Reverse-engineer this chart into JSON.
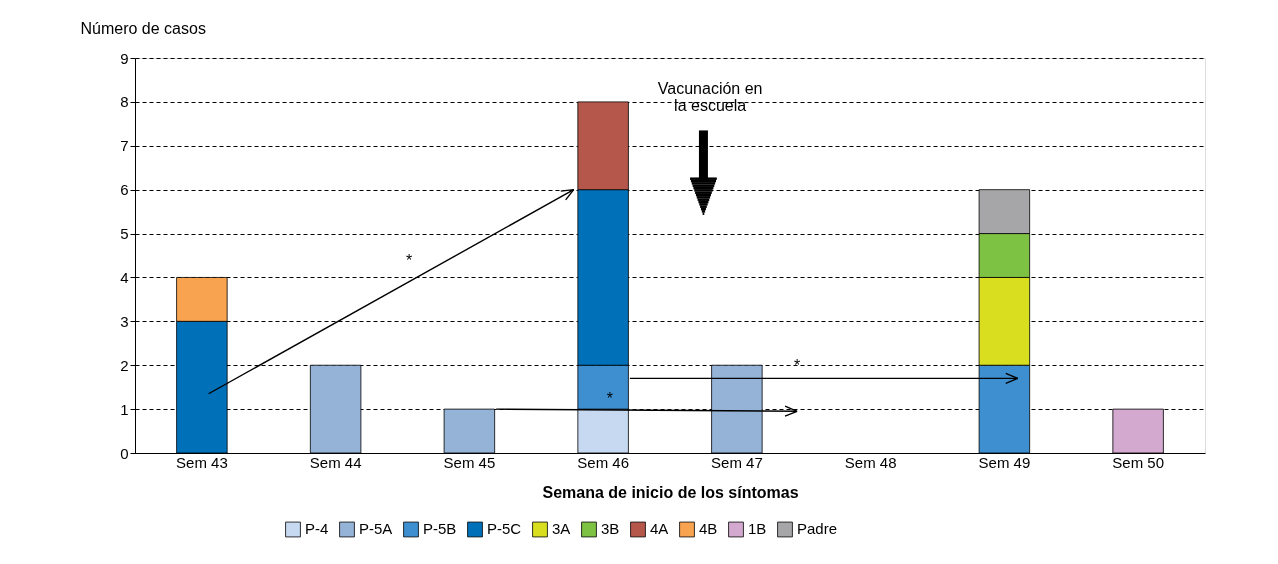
{
  "chart_data": {
    "type": "bar",
    "stacked": true,
    "ylabel": "Número de casos",
    "xlabel": "Semana de inicio de los síntomas",
    "categories": [
      "Sem 43",
      "Sem 44",
      "Sem 45",
      "Sem 46",
      "Sem 47",
      "Sem 48",
      "Sem 49",
      "Sem 50"
    ],
    "series": [
      {
        "name": "P-4",
        "color": "#c6d9f0",
        "values": [
          null,
          null,
          null,
          1,
          null,
          null,
          null,
          null
        ]
      },
      {
        "name": "P-5A",
        "color": "#95b3d7",
        "values": [
          null,
          2,
          1,
          null,
          2,
          null,
          null,
          null
        ]
      },
      {
        "name": "P-5B",
        "color": "#3d8fd0",
        "values": [
          null,
          null,
          null,
          1,
          null,
          null,
          2,
          null
        ]
      },
      {
        "name": "P-5C",
        "color": "#0070b8",
        "values": [
          3,
          null,
          null,
          4,
          null,
          null,
          null,
          null
        ]
      },
      {
        "name": "3A",
        "color": "#d9df1f",
        "values": [
          null,
          null,
          null,
          null,
          null,
          null,
          2,
          null
        ]
      },
      {
        "name": "3B",
        "color": "#7dc242",
        "values": [
          null,
          null,
          null,
          null,
          null,
          null,
          1,
          null
        ]
      },
      {
        "name": "4A",
        "color": "#b5574b",
        "values": [
          null,
          null,
          null,
          2,
          null,
          null,
          null,
          null
        ]
      },
      {
        "name": "4B",
        "color": "#f7a34f",
        "values": [
          1,
          null,
          null,
          null,
          null,
          null,
          null,
          null
        ]
      },
      {
        "name": "1B",
        "color": "#d3a9cf",
        "values": [
          null,
          null,
          null,
          null,
          null,
          null,
          null,
          1
        ]
      },
      {
        "name": "Padre",
        "color": "#a6a6a8",
        "values": [
          null,
          null,
          null,
          null,
          null,
          null,
          1,
          null
        ]
      }
    ],
    "ylim": [
      0,
      9
    ],
    "yticks": [
      0,
      1,
      2,
      3,
      4,
      5,
      6,
      7,
      8,
      9
    ],
    "grid": "y",
    "legend": "bottom",
    "annotations": [
      "Vacunación en\nla escuela",
      "*",
      "*",
      "*"
    ]
  }
}
